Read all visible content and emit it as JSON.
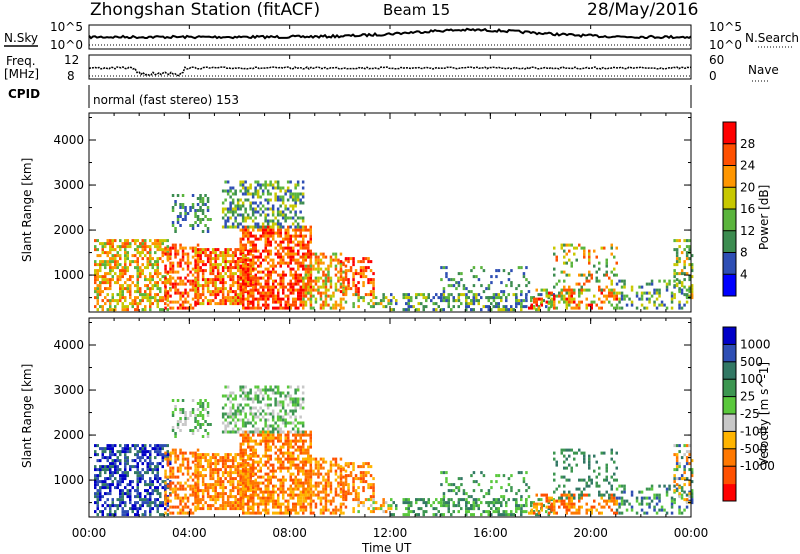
{
  "header": {
    "station": "Zhongshan Station (fitACF)",
    "beam": "Beam 15",
    "date": "28/May/2016"
  },
  "panels": {
    "nsky_label": "N.Sky",
    "nsky_tick_top": "10^5",
    "nsky_tick_bottom": "10^0",
    "nsearch_label": "N.Search",
    "freq_label_1": "Freq.",
    "freq_label_2": "[MHz]",
    "freq_tick_top": "12",
    "freq_tick_bottom": "8",
    "nave_label": "Nave",
    "nave_tick_top": "60",
    "nave_tick_bottom": "0",
    "cpid_label": "CPID",
    "cpid_text": "normal (fast stereo) 153"
  },
  "colors": {
    "power_scale": [
      "#0000ff",
      "#2e4eb4",
      "#3c8c50",
      "#5ab43c",
      "#c8c800",
      "#ff9600",
      "#ff5000",
      "#ff0000"
    ],
    "velocity_scale": [
      "#ff0000",
      "#ff5000",
      "#ff7800",
      "#ffb400",
      "#c8c8c8",
      "#5ac83c",
      "#3c9650",
      "#327864",
      "#2e4eb4",
      "#0000c8"
    ]
  },
  "chart_data": [
    {
      "type": "heatmap",
      "title": "Power",
      "xlabel": "",
      "ylabel": "Slant Range [km]",
      "xlim": [
        "00:00",
        "00:00"
      ],
      "x_ticks": [
        "00:00",
        "04:00",
        "08:00",
        "12:00",
        "16:00",
        "20:00",
        "00:00"
      ],
      "ylim": [
        180,
        4600
      ],
      "y_ticks": [
        1000,
        2000,
        3000,
        4000
      ],
      "colorbar": {
        "label": "Power [dB]",
        "ticks": [
          4,
          8,
          12,
          16,
          20,
          24,
          28
        ]
      }
    },
    {
      "type": "heatmap",
      "title": "Velocity",
      "xlabel": "Time UT",
      "ylabel": "Slant Range [km]",
      "xlim": [
        "00:00",
        "00:00"
      ],
      "x_ticks": [
        "00:00",
        "04:00",
        "08:00",
        "12:00",
        "16:00",
        "20:00",
        "00:00"
      ],
      "ylim": [
        180,
        4600
      ],
      "y_ticks": [
        1000,
        2000,
        3000,
        4000
      ],
      "colorbar": {
        "label": "Velocity [m s^-1]",
        "ticks": [
          "1000",
          "500",
          "100",
          "25",
          "-25",
          "-100",
          "-500",
          "-1000"
        ]
      }
    }
  ]
}
